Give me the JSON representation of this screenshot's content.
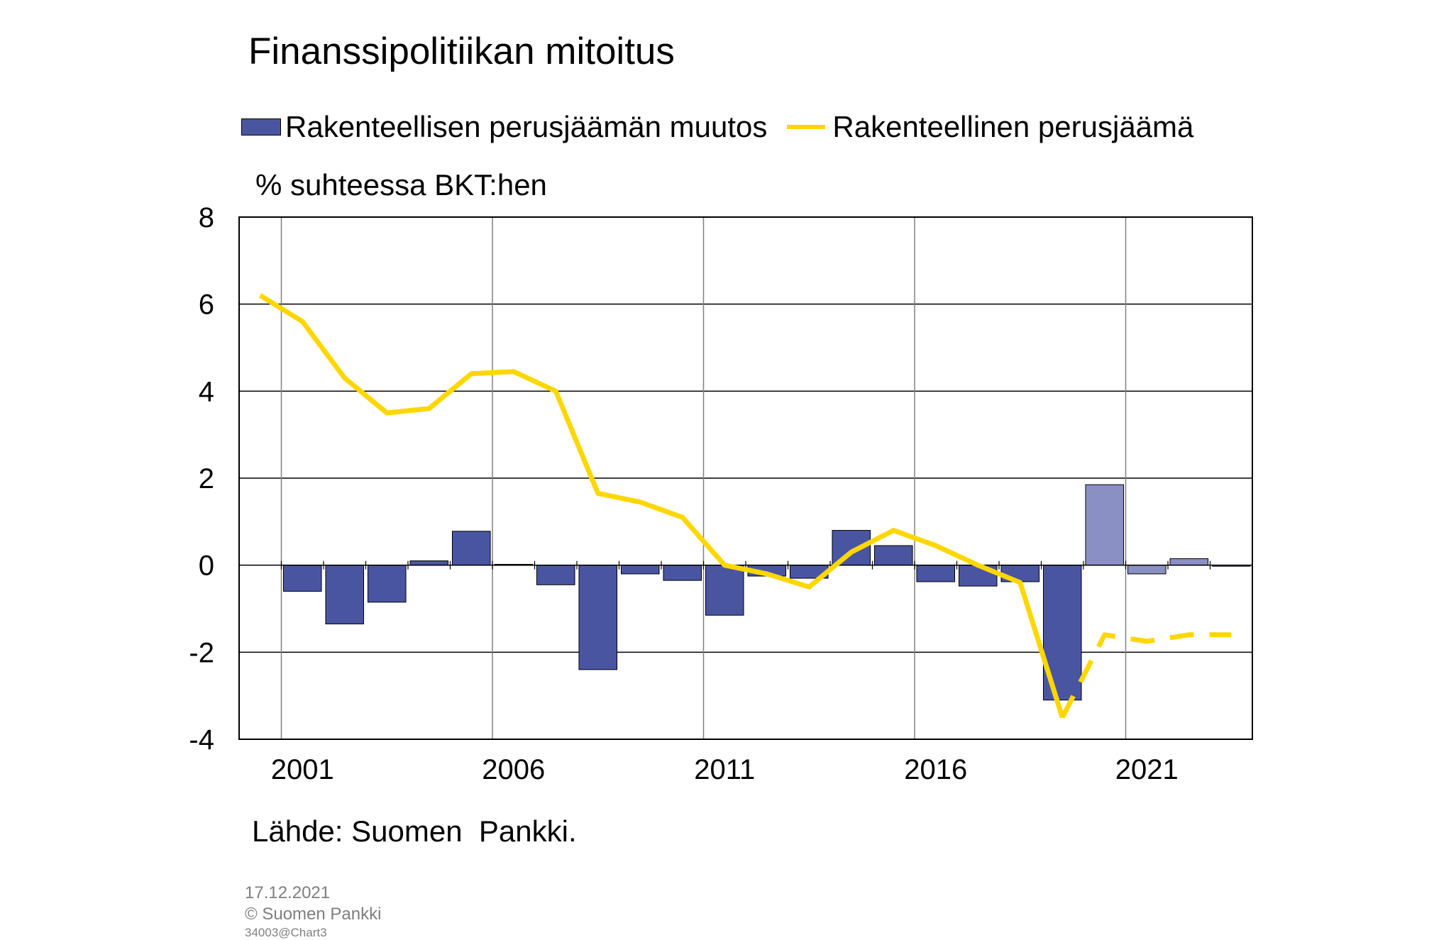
{
  "title": "Finanssipolitiikan mitoitus",
  "legend": {
    "bar_label": "Rakenteellisen perusjäämän muutos",
    "line_label": "Rakenteellinen perusjäämä"
  },
  "unit_label": "% suhteessa BKT:hen",
  "source": "Lähde: Suomen  Pankki.",
  "footer": {
    "date": "17.12.2021",
    "copyright": "© Suomen Pankki",
    "code": "34003@Chart3"
  },
  "colors": {
    "bar": "#4a55a2",
    "bar_forecast": "#8a8fc4",
    "line": "#ffd700",
    "grid": "#808080"
  },
  "chart_data": {
    "type": "bar+line",
    "title": "Finanssipolitiikan mitoitus",
    "ylabel": "% suhteessa BKT:hen",
    "ylim": [
      -4,
      8
    ],
    "yticks": [
      8,
      6,
      4,
      2,
      0,
      -2,
      -4
    ],
    "xtick_labels": [
      "2001",
      "2006",
      "2011",
      "2016",
      "2021"
    ],
    "x": [
      2000,
      2001,
      2002,
      2003,
      2004,
      2005,
      2006,
      2007,
      2008,
      2009,
      2010,
      2011,
      2012,
      2013,
      2014,
      2015,
      2016,
      2017,
      2018,
      2019,
      2020,
      2021,
      2022,
      2023
    ],
    "grid": true,
    "legend_position": "top",
    "forecast_from": 2020,
    "series": [
      {
        "name": "Rakenteellisen perusjäämän muutos",
        "type": "bar",
        "values": [
          null,
          -0.6,
          -1.35,
          -0.85,
          0.1,
          0.78,
          0.02,
          -0.45,
          -2.4,
          -0.2,
          -0.35,
          -1.15,
          -0.25,
          -0.3,
          0.8,
          0.45,
          -0.38,
          -0.48,
          -0.38,
          -3.1,
          1.85,
          -0.2,
          0.15,
          -0.02
        ]
      },
      {
        "name": "Rakenteellinen perusjäämä",
        "type": "line",
        "values": [
          6.2,
          5.6,
          4.3,
          3.5,
          3.6,
          4.4,
          4.45,
          4.0,
          1.65,
          1.45,
          1.1,
          0.0,
          -0.2,
          -0.5,
          0.3,
          0.8,
          0.45,
          0.0,
          -0.4,
          -3.5,
          -1.6,
          -1.75,
          -1.6,
          -1.6
        ]
      }
    ]
  }
}
